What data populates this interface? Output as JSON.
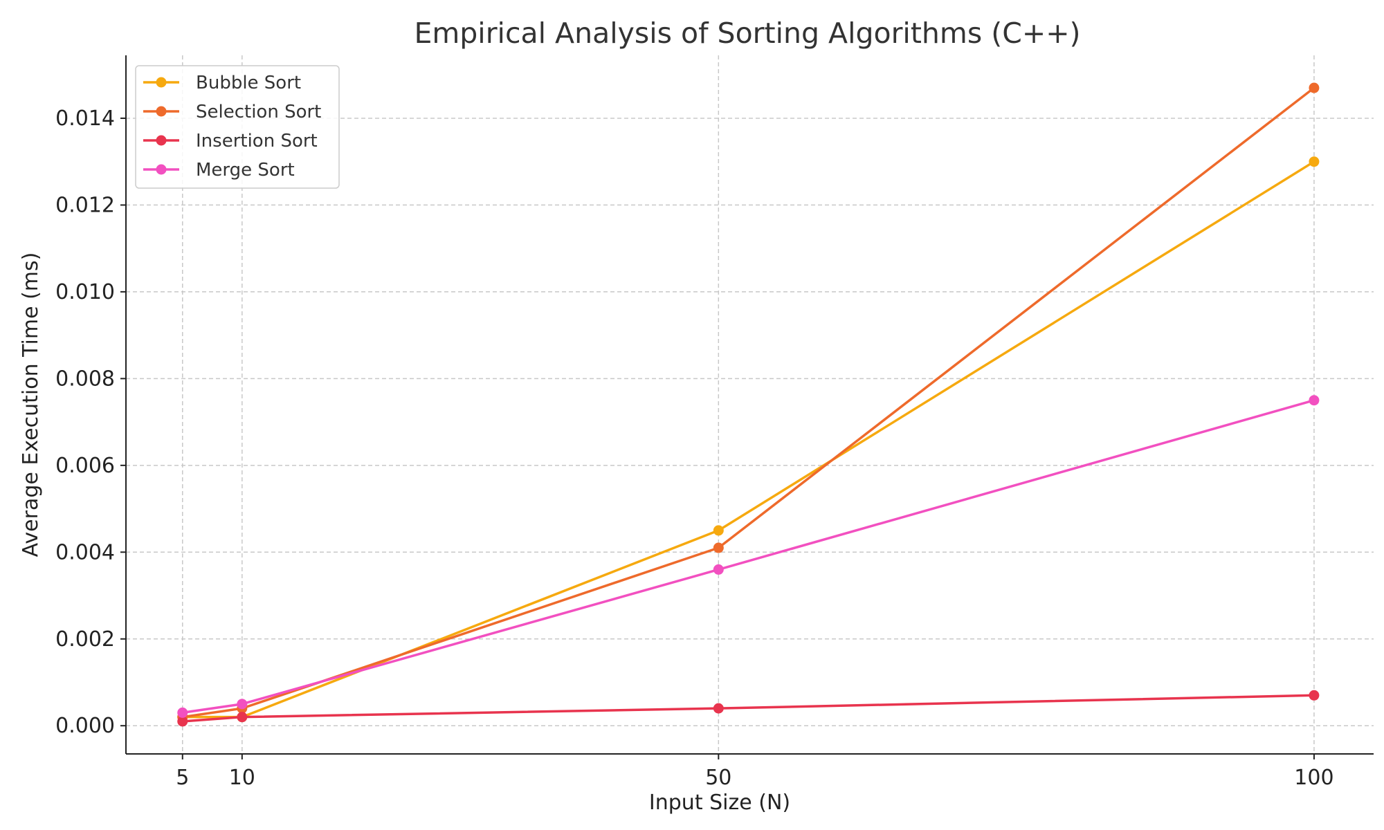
{
  "chart_data": {
    "type": "line",
    "title": "Empirical Analysis of Sorting Algorithms (C++)",
    "xlabel": "Input Size (N)",
    "ylabel": "Average Execution Time (ms)",
    "x": [
      5,
      10,
      50,
      100
    ],
    "xticks": [
      "5",
      "10",
      "50",
      "100"
    ],
    "yticks": [
      "0.000",
      "0.002",
      "0.004",
      "0.006",
      "0.008",
      "0.010",
      "0.012",
      "0.014"
    ],
    "xlim": [
      0.25,
      105
    ],
    "ylim": [
      -0.00065,
      0.01545
    ],
    "grid": true,
    "legend_position": "top-left",
    "series": [
      {
        "name": "Bubble Sort",
        "color": "#F6A90F",
        "values": [
          0.0002,
          0.0002,
          0.0045,
          0.013
        ]
      },
      {
        "name": "Selection Sort",
        "color": "#EE6A2B",
        "values": [
          0.0002,
          0.0004,
          0.0041,
          0.0147
        ]
      },
      {
        "name": "Insertion Sort",
        "color": "#E8344E",
        "values": [
          0.0001,
          0.0002,
          0.0004,
          0.0007
        ]
      },
      {
        "name": "Merge Sort",
        "color": "#F250C0",
        "values": [
          0.0003,
          0.0005,
          0.0036,
          0.0075
        ]
      }
    ]
  }
}
